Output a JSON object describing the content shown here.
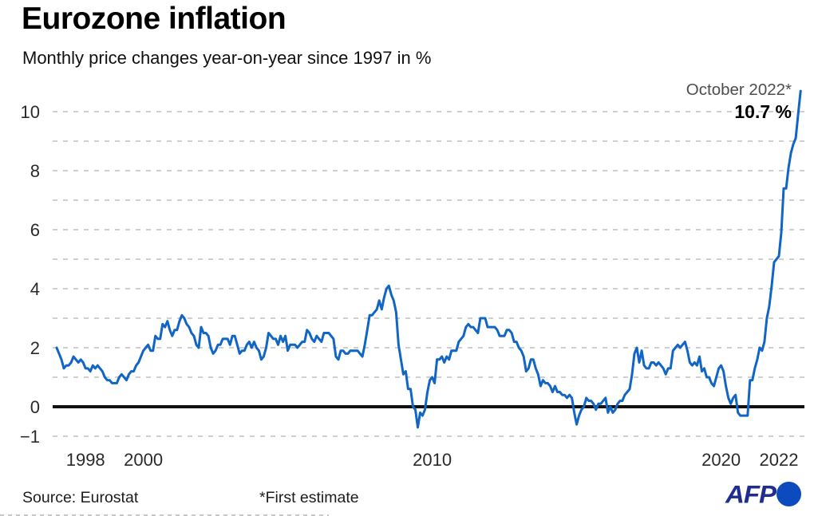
{
  "header": {
    "title": "Eurozone inflation",
    "subtitle": "Monthly price changes year-on-year since 1997 in %"
  },
  "annotation": {
    "line1": "October 2022*",
    "line2": "10.7 %"
  },
  "footer": {
    "source": "Source: Eurostat",
    "footnote": "*First estimate",
    "afp_text": "AFP"
  },
  "colors": {
    "line_blue": "#1065c5",
    "grid_gray": "#cfcfcf",
    "zero_line_black": "#111111",
    "axis_text": "#2a2a2a",
    "annotation_gray": "#4d4d4d",
    "afp_navy": "#1f2d91",
    "afp_circle_blue": "#0e4abf"
  },
  "chart_data": {
    "type": "line",
    "title": "Eurozone inflation",
    "subtitle": "Monthly price changes year-on-year since 1997 in %",
    "unit": "% year-on-year",
    "frequency": "monthly",
    "start": "1997-01",
    "end": "2022-10",
    "ylim": [
      -1.5,
      11
    ],
    "y_ticks": [
      10,
      8,
      6,
      4,
      2,
      0,
      -1
    ],
    "grid_values": [
      10,
      9,
      8,
      7,
      6,
      5,
      4,
      3,
      2,
      1,
      -1
    ],
    "zero_line": true,
    "grid": "dashed-horizontal",
    "legend": "none",
    "x_ticks": [
      1998,
      2000,
      2010,
      2020,
      2022
    ],
    "last_point": {
      "label": "October 2022*",
      "value": 10.7,
      "note": "First estimate"
    },
    "series": [
      {
        "name": "Eurozone inflation rate",
        "monthly_values": [
          2.0,
          1.8,
          1.6,
          1.3,
          1.4,
          1.4,
          1.5,
          1.7,
          1.6,
          1.5,
          1.6,
          1.5,
          1.3,
          1.3,
          1.2,
          1.4,
          1.3,
          1.4,
          1.3,
          1.2,
          1.0,
          0.9,
          0.9,
          0.8,
          0.8,
          0.8,
          1.0,
          1.1,
          1.0,
          0.9,
          1.1,
          1.2,
          1.2,
          1.4,
          1.5,
          1.7,
          1.9,
          2.0,
          2.1,
          1.9,
          1.9,
          2.4,
          2.3,
          2.3,
          2.8,
          2.7,
          2.9,
          2.6,
          2.4,
          2.6,
          2.6,
          2.9,
          3.1,
          3.0,
          2.8,
          2.7,
          2.5,
          2.4,
          2.1,
          2.0,
          2.7,
          2.5,
          2.5,
          2.4,
          2.0,
          1.8,
          1.9,
          2.1,
          2.1,
          2.3,
          2.3,
          2.3,
          2.1,
          2.4,
          2.4,
          2.1,
          1.8,
          1.9,
          1.9,
          2.1,
          2.2,
          2.0,
          2.2,
          2.0,
          1.9,
          1.6,
          1.7,
          2.0,
          2.5,
          2.4,
          2.3,
          2.3,
          2.1,
          2.4,
          2.2,
          2.4,
          1.9,
          2.1,
          2.1,
          2.1,
          2.0,
          2.1,
          2.2,
          2.2,
          2.6,
          2.5,
          2.3,
          2.2,
          2.4,
          2.3,
          2.2,
          2.5,
          2.5,
          2.5,
          2.4,
          2.3,
          1.7,
          1.6,
          1.9,
          1.9,
          1.8,
          1.8,
          1.9,
          1.9,
          1.9,
          1.9,
          1.8,
          1.7,
          2.1,
          2.6,
          3.1,
          3.1,
          3.2,
          3.3,
          3.6,
          3.3,
          3.7,
          4.0,
          4.1,
          3.8,
          3.6,
          3.2,
          2.1,
          1.6,
          1.1,
          1.2,
          0.6,
          0.6,
          0.0,
          -0.1,
          -0.7,
          -0.2,
          -0.3,
          -0.1,
          0.5,
          0.9,
          1.0,
          0.8,
          1.6,
          1.6,
          1.7,
          1.5,
          1.7,
          1.6,
          1.9,
          1.9,
          1.9,
          2.2,
          2.3,
          2.4,
          2.7,
          2.8,
          2.7,
          2.7,
          2.6,
          2.5,
          3.0,
          3.0,
          3.0,
          2.7,
          2.7,
          2.7,
          2.7,
          2.6,
          2.4,
          2.4,
          2.4,
          2.6,
          2.6,
          2.5,
          2.2,
          2.2,
          2.0,
          1.9,
          1.7,
          1.2,
          1.3,
          1.6,
          1.6,
          1.3,
          1.1,
          0.7,
          0.9,
          0.8,
          0.8,
          0.7,
          0.5,
          0.7,
          0.5,
          0.5,
          0.4,
          0.4,
          0.3,
          0.4,
          0.3,
          -0.2,
          -0.6,
          -0.3,
          -0.1,
          0.0,
          0.3,
          0.2,
          0.2,
          0.1,
          -0.1,
          0.1,
          0.1,
          0.2,
          0.3,
          -0.2,
          0.0,
          -0.2,
          -0.1,
          0.1,
          0.2,
          0.2,
          0.4,
          0.5,
          0.6,
          1.1,
          1.8,
          2.0,
          1.5,
          1.9,
          1.4,
          1.3,
          1.3,
          1.5,
          1.5,
          1.4,
          1.5,
          1.4,
          1.3,
          1.1,
          1.3,
          1.3,
          1.9,
          2.0,
          2.1,
          2.0,
          2.1,
          2.2,
          1.9,
          1.5,
          1.4,
          1.5,
          1.4,
          1.7,
          1.2,
          1.3,
          1.0,
          1.0,
          0.8,
          0.7,
          1.0,
          1.3,
          1.4,
          1.2,
          0.7,
          0.3,
          0.1,
          0.3,
          0.4,
          -0.2,
          -0.3,
          -0.3,
          -0.3,
          -0.3,
          0.9,
          0.9,
          1.3,
          1.6,
          2.0,
          1.9,
          2.2,
          3.0,
          3.4,
          4.1,
          4.9,
          5.0,
          5.1,
          5.9,
          7.4,
          7.4,
          8.1,
          8.6,
          8.9,
          9.1,
          9.9,
          10.7
        ]
      }
    ]
  }
}
